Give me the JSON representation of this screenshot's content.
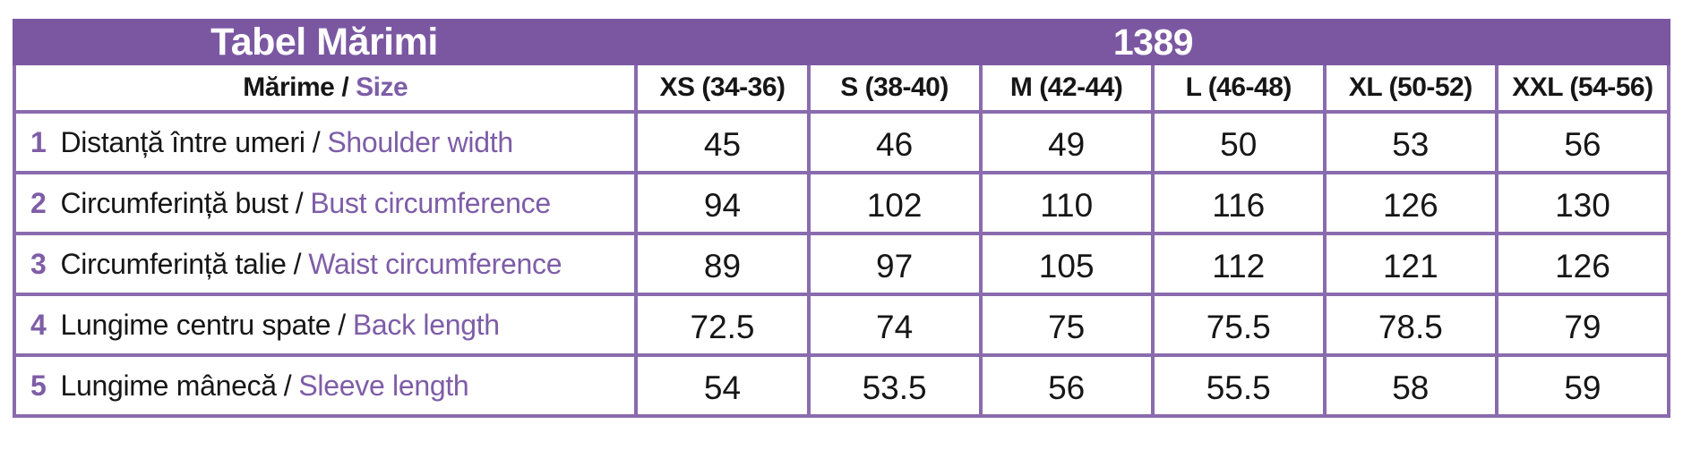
{
  "colors": {
    "header_band": "#7b57a2",
    "border": "#8a6bae",
    "accent_text": "#7e5da7",
    "band_text": "#ffffff",
    "body_text": "#161616"
  },
  "header": {
    "title": "Tabel Mărimi",
    "model_number": "1389"
  },
  "table": {
    "label_header": {
      "ro": "Mărime",
      "separator": "/",
      "en": "Size"
    },
    "separator": "/",
    "size_columns": [
      "XS (34-36)",
      "S (38-40)",
      "M (42-44)",
      "L (46-48)",
      "XL (50-52)",
      "XXL (54-56)"
    ],
    "rows": [
      {
        "num": "1",
        "label_ro": "Distanță între umeri",
        "label_en": "Shoulder width",
        "values": [
          "45",
          "46",
          "49",
          "50",
          "53",
          "56"
        ]
      },
      {
        "num": "2",
        "label_ro": "Circumferință bust",
        "label_en": "Bust circumference",
        "values": [
          "94",
          "102",
          "110",
          "116",
          "126",
          "130"
        ]
      },
      {
        "num": "3",
        "label_ro": "Circumferință talie",
        "label_en": "Waist circumference",
        "values": [
          "89",
          "97",
          "105",
          "112",
          "121",
          "126"
        ]
      },
      {
        "num": "4",
        "label_ro": "Lungime centru spate",
        "label_en": "Back length",
        "values": [
          "72.5",
          "74",
          "75",
          "75.5",
          "78.5",
          "79"
        ]
      },
      {
        "num": "5",
        "label_ro": "Lungime mânecă",
        "label_en": "Sleeve length",
        "values": [
          "54",
          "53.5",
          "56",
          "55.5",
          "58",
          "59"
        ]
      }
    ]
  }
}
